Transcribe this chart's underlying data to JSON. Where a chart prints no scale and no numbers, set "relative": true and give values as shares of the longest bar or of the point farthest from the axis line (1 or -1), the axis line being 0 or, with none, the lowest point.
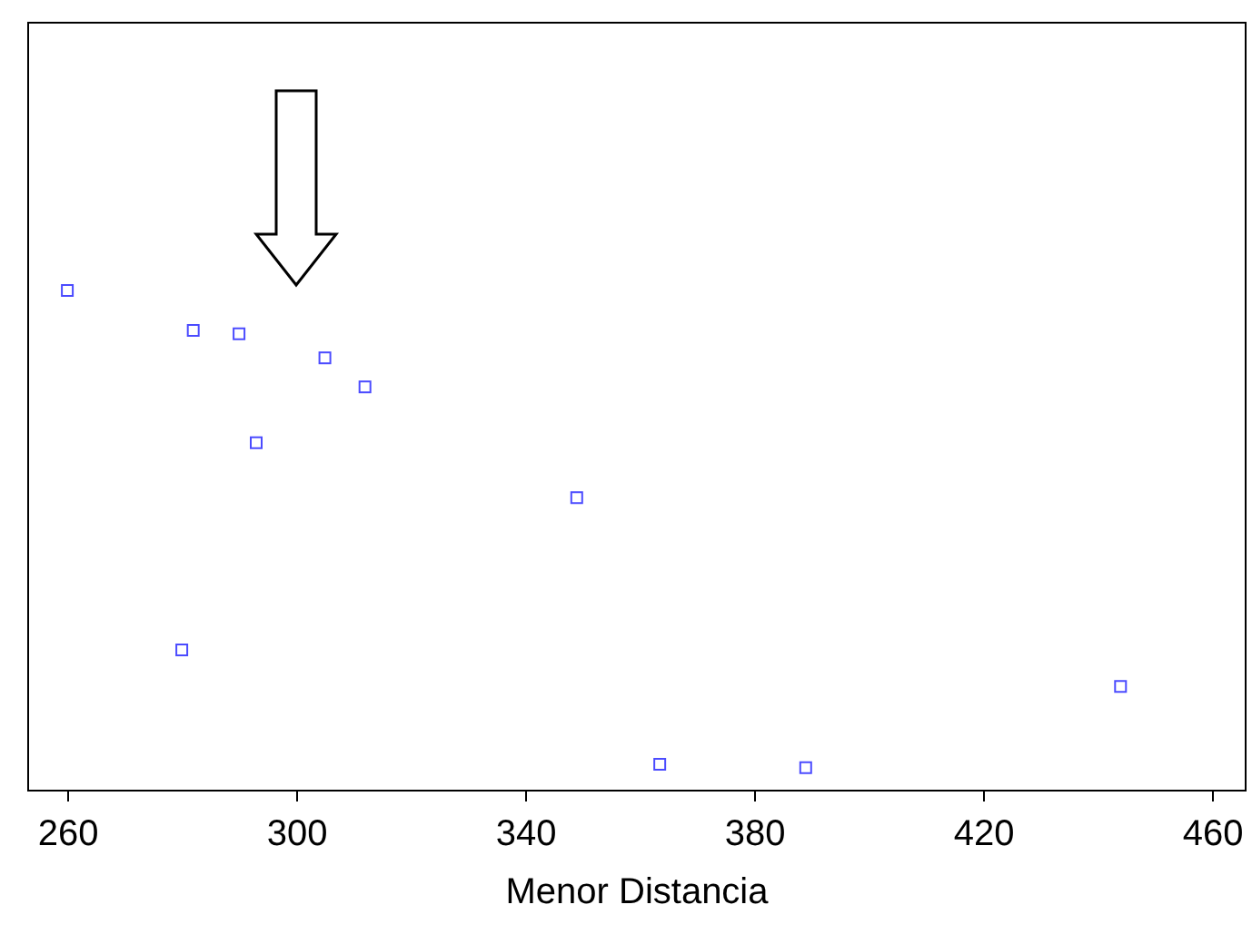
{
  "chart_data": {
    "type": "scatter",
    "xlabel": "Menor Distancia",
    "relative": true,
    "tick_labels": "x",
    "marker": "square",
    "grid": false,
    "xlim": [
      253,
      465.7
    ],
    "xticks": [
      260,
      300,
      340,
      380,
      420,
      460
    ],
    "x": [
      260,
      282,
      290,
      305,
      312,
      293,
      349,
      280,
      363.5,
      389,
      444
    ],
    "series": [
      {
        "color": "#0000ff",
        "values": [
          1.0,
          0.92,
          0.913,
          0.865,
          0.807,
          0.695,
          0.585,
          0.28,
          0.051,
          0.044,
          0.207
        ]
      }
    ]
  }
}
